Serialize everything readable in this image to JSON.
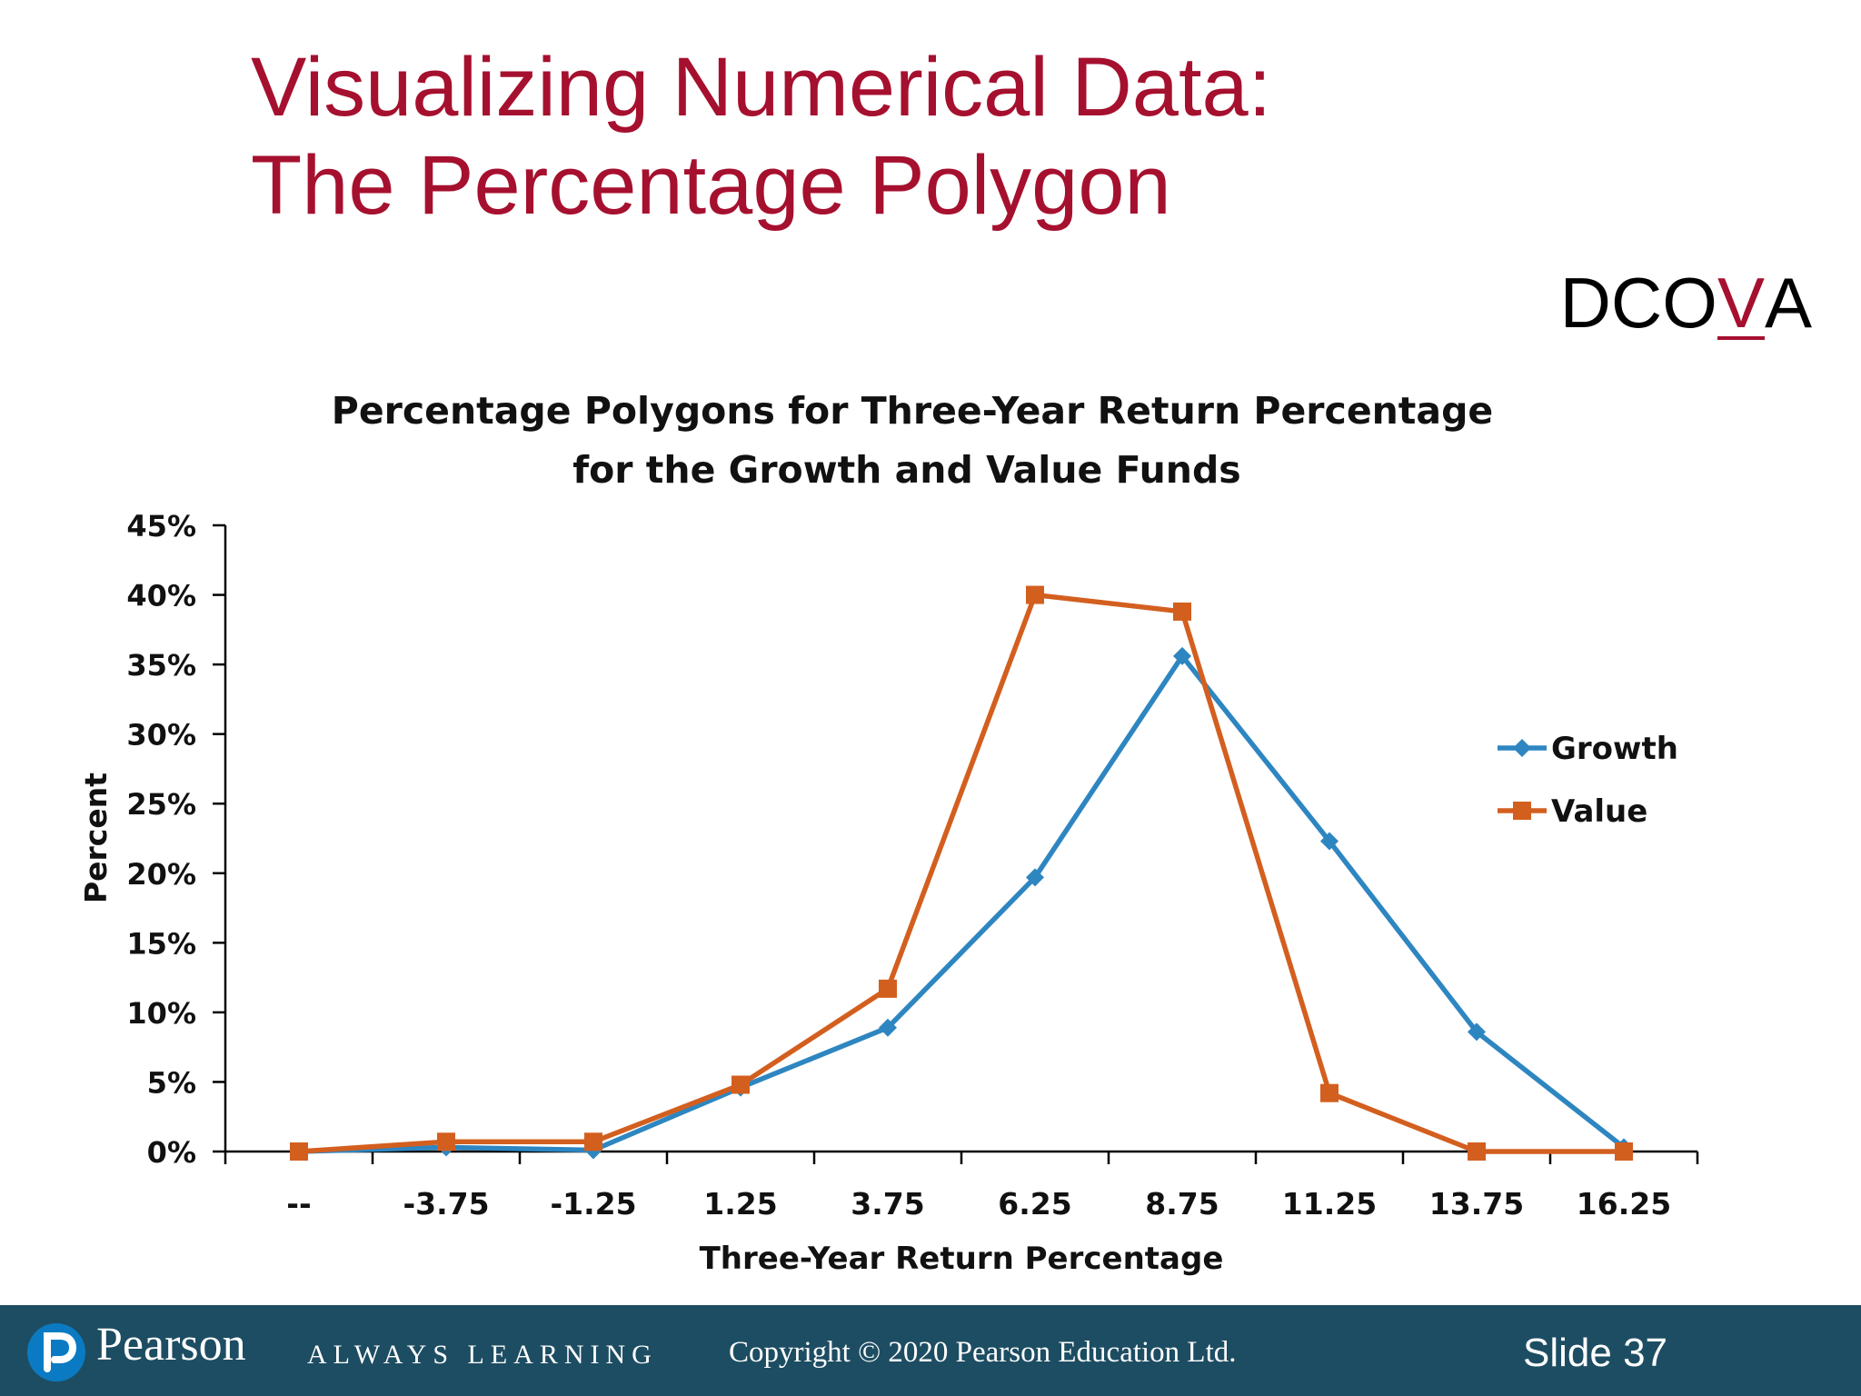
{
  "slide": {
    "title_line1": "Visualizing Numerical Data:",
    "title_line2": "The Percentage Polygon",
    "dcova_prefix": "DCO",
    "dcova_highlight": "V",
    "dcova_suffix": "A"
  },
  "chart_data": {
    "type": "line",
    "title_line1": "Percentage Polygons for Three-Year Return Percentage",
    "title_line2": "for the Growth and Value Funds",
    "xlabel": "Three-Year Return Percentage",
    "ylabel": "Percent",
    "categories": [
      "--",
      "-3.75",
      "-1.25",
      "1.25",
      "3.75",
      "6.25",
      "8.75",
      "11.25",
      "13.75",
      "16.25"
    ],
    "ylim": [
      0,
      45
    ],
    "yticks": [
      "0%",
      "5%",
      "10%",
      "15%",
      "20%",
      "25%",
      "30%",
      "35%",
      "40%",
      "45%"
    ],
    "legend_position": "right",
    "grid": false,
    "series": [
      {
        "name": "Growth",
        "color": "#2e86c1",
        "marker": "diamond",
        "values": [
          0,
          0.3,
          0.1,
          4.6,
          8.9,
          19.7,
          35.6,
          22.3,
          8.6,
          0.3
        ]
      },
      {
        "name": "Value",
        "color": "#d35f1f",
        "marker": "square",
        "values": [
          0,
          0.7,
          0.7,
          4.8,
          11.7,
          40.0,
          38.8,
          4.2,
          0,
          0
        ]
      }
    ]
  },
  "footer": {
    "logo_text": "Pearson",
    "tagline": "ALWAYS LEARNING",
    "copyright": "Copyright © 2020 Pearson Education Ltd.",
    "slide_number": "Slide 37"
  }
}
